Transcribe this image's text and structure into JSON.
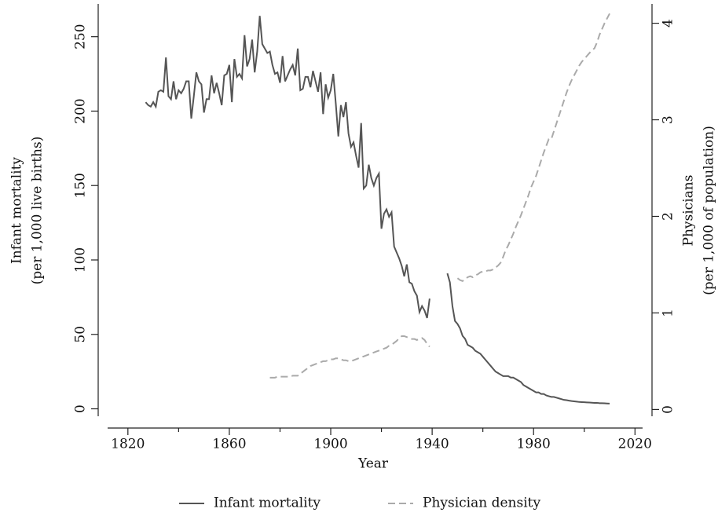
{
  "chart_data": {
    "type": "line",
    "xlabel": "Year",
    "ylabel": [
      "Infant mortality",
      "(per 1,000 live births)"
    ],
    "y2label": [
      "Physicians",
      "(per 1,000 of population)"
    ],
    "x": [
      1827,
      1828,
      1829,
      1830,
      1831,
      1832,
      1833,
      1834,
      1835,
      1836,
      1837,
      1838,
      1839,
      1840,
      1841,
      1842,
      1843,
      1844,
      1845,
      1846,
      1847,
      1848,
      1849,
      1850,
      1851,
      1852,
      1853,
      1854,
      1855,
      1856,
      1857,
      1858,
      1859,
      1860,
      1861,
      1862,
      1863,
      1864,
      1865,
      1866,
      1867,
      1868,
      1869,
      1870,
      1871,
      1872,
      1873,
      1874,
      1875,
      1876,
      1877,
      1878,
      1879,
      1880,
      1881,
      1882,
      1883,
      1884,
      1885,
      1886,
      1887,
      1888,
      1889,
      1890,
      1891,
      1892,
      1893,
      1894,
      1895,
      1896,
      1897,
      1898,
      1899,
      1900,
      1901,
      1902,
      1903,
      1904,
      1905,
      1906,
      1907,
      1908,
      1909,
      1910,
      1911,
      1912,
      1913,
      1914,
      1915,
      1916,
      1917,
      1918,
      1919,
      1920,
      1921,
      1922,
      1923,
      1924,
      1925,
      1926,
      1927,
      1928,
      1929,
      1930,
      1931,
      1932,
      1933,
      1934,
      1935,
      1936,
      1937,
      1938,
      1939,
      1940,
      1941,
      1942,
      1943,
      1944,
      1945,
      1946,
      1947,
      1948,
      1949,
      1950,
      1951,
      1952,
      1953,
      1954,
      1955,
      1956,
      1957,
      1958,
      1959,
      1960,
      1961,
      1962,
      1963,
      1964,
      1965,
      1966,
      1967,
      1968,
      1969,
      1970,
      1971,
      1972,
      1973,
      1974,
      1975,
      1976,
      1977,
      1978,
      1979,
      1980,
      1981,
      1982,
      1983,
      1984,
      1985,
      1986,
      1987,
      1988,
      1989,
      1990,
      1991,
      1992,
      1993,
      1994,
      1995,
      1996,
      1997,
      1998,
      1999,
      2000,
      2001,
      2002,
      2003,
      2004,
      2005,
      2006,
      2007,
      2008,
      2009,
      2010
    ],
    "series": [
      {
        "name": "Infant mortality",
        "color": "#555555",
        "dashed": false,
        "axis": "y",
        "values": [
          206,
          204,
          203,
          206,
          203,
          213,
          214,
          213,
          236,
          210,
          208,
          220,
          208,
          214,
          212,
          215,
          220,
          220,
          195,
          210,
          226,
          220,
          218,
          199,
          208,
          208,
          224,
          212,
          219,
          212,
          204,
          224,
          225,
          231,
          206,
          235,
          223,
          225,
          222,
          251,
          230,
          235,
          248,
          226,
          240,
          264,
          245,
          242,
          239,
          240,
          231,
          225,
          226,
          219,
          237,
          220,
          224,
          228,
          231,
          224,
          242,
          214,
          215,
          223,
          223,
          216,
          227,
          220,
          213,
          226,
          198,
          218,
          209,
          214,
          225,
          205,
          183,
          204,
          196,
          206,
          185,
          176,
          179,
          170,
          162,
          192,
          148,
          150,
          164,
          155,
          150,
          155,
          158,
          121,
          131,
          134,
          129,
          132,
          109,
          105,
          101,
          96,
          89,
          97,
          85,
          84,
          79,
          76,
          65,
          69,
          66,
          61,
          74,
          null,
          null,
          null,
          null,
          null,
          null,
          91,
          85,
          69,
          59,
          57,
          54,
          49,
          47,
          43,
          42,
          41,
          39,
          38,
          37,
          35,
          33,
          31,
          29,
          27,
          25,
          24,
          23,
          22,
          22,
          22,
          21,
          21,
          20,
          19,
          18,
          16,
          15,
          14,
          13,
          12,
          11,
          11,
          10,
          10,
          9,
          8.5,
          8,
          8,
          7.5,
          7,
          6.5,
          6,
          5.8,
          5.5,
          5.2,
          5,
          4.8,
          4.6,
          4.5,
          4.4,
          4.3,
          4.2,
          4.1,
          4,
          4,
          3.8,
          3.8,
          3.7,
          3.6,
          3.5
        ]
      },
      {
        "name": "Physician density",
        "color": "#aaaaaa",
        "dashed": true,
        "axis": "y2",
        "values": [
          null,
          null,
          null,
          null,
          null,
          null,
          null,
          null,
          null,
          null,
          null,
          null,
          null,
          null,
          null,
          null,
          null,
          null,
          null,
          null,
          null,
          null,
          null,
          null,
          null,
          null,
          null,
          null,
          null,
          null,
          null,
          null,
          null,
          null,
          null,
          null,
          null,
          null,
          null,
          null,
          null,
          null,
          null,
          null,
          null,
          null,
          null,
          null,
          null,
          0.33,
          0.33,
          0.33,
          0.34,
          0.34,
          0.34,
          0.34,
          0.34,
          0.34,
          0.35,
          0.35,
          0.35,
          0.37,
          0.39,
          0.41,
          0.43,
          0.45,
          0.46,
          0.47,
          0.48,
          0.49,
          0.5,
          0.5,
          0.51,
          0.52,
          0.52,
          0.53,
          0.53,
          0.52,
          0.51,
          0.51,
          0.5,
          0.5,
          0.51,
          0.52,
          0.53,
          0.54,
          0.55,
          0.56,
          0.57,
          0.58,
          0.59,
          0.6,
          0.61,
          0.62,
          0.63,
          0.64,
          0.66,
          0.67,
          0.69,
          0.71,
          0.74,
          0.76,
          0.76,
          0.75,
          0.74,
          0.73,
          0.73,
          0.72,
          0.73,
          0.74,
          0.72,
          0.68,
          0.65,
          null,
          null,
          null,
          null,
          null,
          null,
          null,
          null,
          null,
          null,
          1.36,
          1.34,
          1.33,
          1.35,
          1.37,
          1.38,
          1.37,
          1.39,
          1.4,
          1.42,
          1.43,
          1.43,
          1.44,
          1.44,
          1.45,
          1.47,
          1.49,
          1.52,
          1.58,
          1.65,
          1.7,
          1.76,
          1.82,
          1.89,
          1.95,
          2.01,
          2.08,
          2.15,
          2.22,
          2.3,
          2.36,
          2.42,
          2.5,
          2.58,
          2.66,
          2.73,
          2.8,
          2.8,
          2.88,
          2.96,
          3.04,
          3.12,
          3.2,
          3.28,
          3.35,
          3.41,
          3.46,
          3.51,
          3.56,
          3.6,
          3.63,
          3.66,
          3.69,
          3.72,
          3.74,
          3.8,
          3.88,
          3.94,
          4,
          4.05,
          4.1
        ]
      }
    ],
    "xlim": [
      1812,
      2023
    ],
    "xticks": [
      1820,
      1860,
      1900,
      1940,
      1980,
      2020
    ],
    "xminorticks": [
      1840,
      1880,
      1920,
      1960,
      2000
    ],
    "ylim": [
      -5,
      272
    ],
    "yticks": [
      0,
      50,
      100,
      150,
      200,
      250
    ],
    "y2lim": [
      -0.07,
      4.2
    ],
    "y2ticks": [
      0,
      1,
      2,
      3,
      4
    ],
    "legend": "bottom"
  }
}
